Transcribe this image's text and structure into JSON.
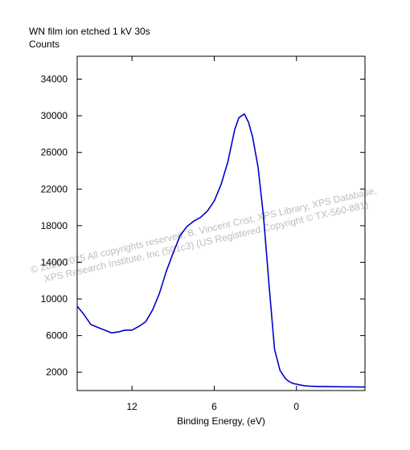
{
  "chart_data": {
    "type": "line",
    "title": "WN film ion etched 1 kV 30s",
    "ylabel": "Counts",
    "xlabel": "Binding Energy, (eV)",
    "x_reversed": true,
    "xlim": [
      16,
      -5
    ],
    "ylim": [
      0,
      36500
    ],
    "xticks": [
      12,
      6,
      0
    ],
    "xtick_labels": [
      "12",
      "6",
      "0"
    ],
    "yticks": [
      2000,
      6000,
      10000,
      14000,
      18000,
      22000,
      26000,
      30000,
      34000
    ],
    "ytick_labels": [
      "2000",
      "6000",
      "10000",
      "14000",
      "18000",
      "22000",
      "26000",
      "30000",
      "34000"
    ],
    "grid": false,
    "series": [
      {
        "color": "#0000cc",
        "x": [
          16.0,
          15.5,
          15.0,
          14.5,
          14.0,
          13.5,
          13.0,
          12.5,
          12.0,
          11.5,
          11.0,
          10.5,
          10.0,
          9.5,
          9.0,
          8.5,
          8.0,
          7.5,
          7.0,
          6.5,
          6.0,
          5.5,
          5.0,
          4.5,
          4.2,
          3.8,
          3.5,
          3.2,
          2.8,
          2.4,
          2.0,
          1.6,
          1.2,
          0.8,
          0.5,
          0.2,
          0.0,
          -0.3,
          -0.6,
          -1.0,
          -1.5,
          -2.0,
          -2.5,
          -3.0,
          -3.5,
          -4.0,
          -4.5,
          -5.0
        ],
        "y": [
          9200,
          8300,
          7200,
          6900,
          6600,
          6300,
          6400,
          6600,
          6600,
          7000,
          7500,
          8800,
          10600,
          13000,
          15000,
          16900,
          17900,
          18500,
          18900,
          19600,
          20700,
          22500,
          25000,
          28500,
          29800,
          30200,
          29300,
          27700,
          24400,
          19000,
          11500,
          4500,
          2200,
          1300,
          950,
          750,
          700,
          600,
          520,
          470,
          450,
          430,
          420,
          410,
          400,
          400,
          390,
          390
        ]
      }
    ]
  },
  "watermark": {
    "line1": "© 2020-2025  All copyrights reserved,  B. Vincent Crist,  XPS Library, XPS Database,",
    "line2": "XPS Research Institute, Inc (501c3)  (US Registered Copyright © TX-560-881)"
  }
}
